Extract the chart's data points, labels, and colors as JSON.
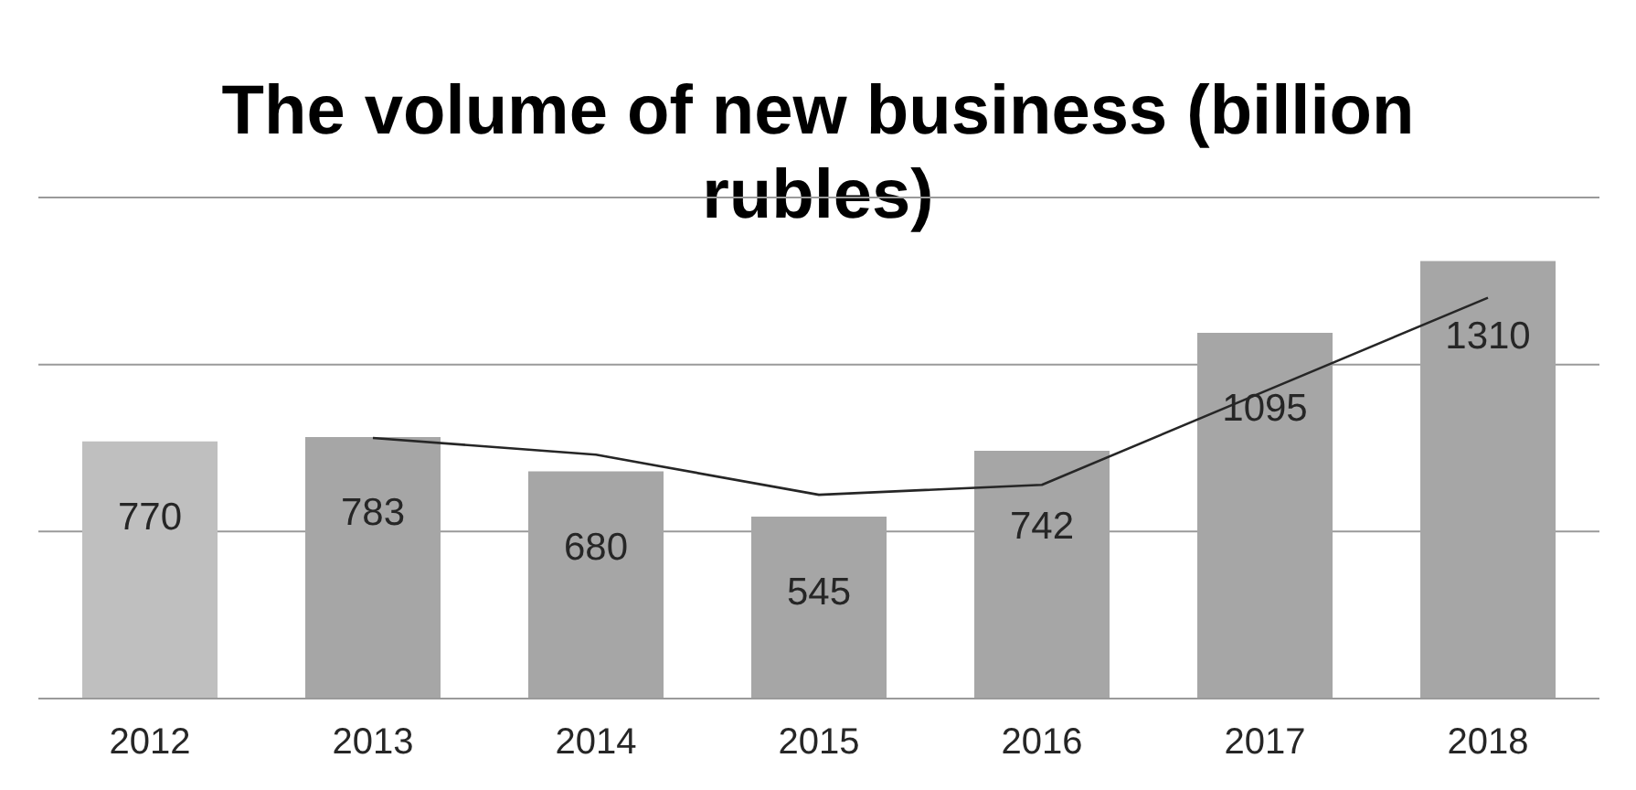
{
  "chart_data": {
    "type": "bar",
    "title": "The volume of new business (billion rubles)",
    "categories": [
      "2012",
      "2013",
      "2014",
      "2015",
      "2016",
      "2017",
      "2018"
    ],
    "series": [
      {
        "colors": [
          "#bfbfbf",
          "#a6a6a6",
          "#a6a6a6",
          "#a6a6a6",
          "#a6a6a6",
          "#a6a6a6",
          "#a6a6a6"
        ],
        "values": [
          770,
          783,
          680,
          545,
          742,
          1095,
          1310
        ],
        "value_labels": [
          "770",
          "783",
          "680",
          "545",
          "742",
          "1095",
          "1310"
        ]
      },
      {
        "type": "line",
        "color": "#262626",
        "values": [
          null,
          780,
          730,
          610,
          640,
          920,
          1200
        ],
        "marker": "none"
      }
    ],
    "ylim": [
      0,
      1500
    ],
    "yticks": [
      {
        "value": 0,
        "label": null
      },
      {
        "value": 500,
        "label": null
      },
      {
        "value": 1000,
        "label": null
      },
      {
        "value": 1500,
        "label": null
      }
    ],
    "tick_labels": "x",
    "grid": "y",
    "legend": false
  }
}
